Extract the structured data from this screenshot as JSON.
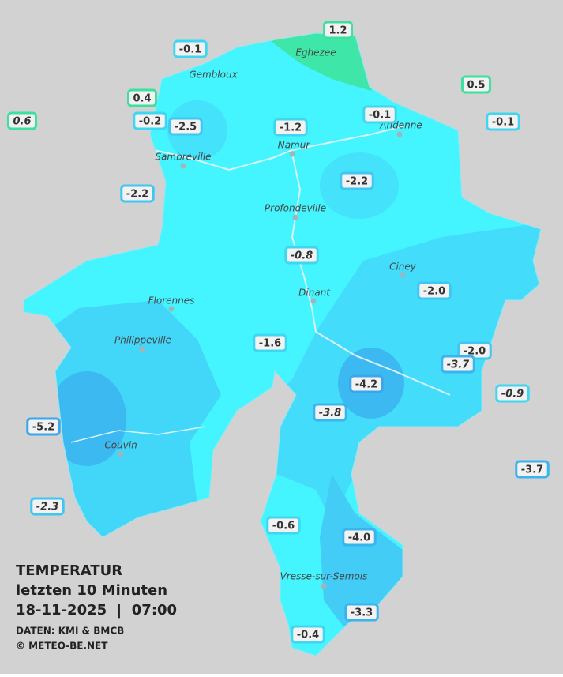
{
  "map": {
    "background": "#d2d2d2",
    "legend": {
      "title": "TEMPERATUR",
      "subtitle": "letzten 10 Minuten",
      "datetime": "18-11-2025  |  07:00",
      "source": "DATEN: KMI & BMCB",
      "copyright": "© METEO-BE.NET"
    },
    "cities": [
      "Eghezee",
      "Gembloux",
      "Andenne",
      "Namur",
      "Sambreville",
      "Profondeville",
      "Ciney",
      "Dinant",
      "Florennes",
      "Philippeville",
      "Couvin",
      "Vresse-sur-Semois"
    ],
    "stations": [
      {
        "value": "-0.1",
        "border": "#3fd6f2"
      },
      {
        "value": "1.2",
        "border": "#3ee0a0"
      },
      {
        "value": "0.5",
        "border": "#3ee0a0"
      },
      {
        "value": "0.4",
        "border": "#3ee0a0"
      },
      {
        "value": "0.6",
        "border": "#3ee0a0",
        "italic": true
      },
      {
        "value": "-0.2",
        "border": "#3fd6f2"
      },
      {
        "value": "-2.5",
        "border": "#3fc6f2"
      },
      {
        "value": "-1.2",
        "border": "#3fd6f2"
      },
      {
        "value": "-0.1",
        "border": "#3fd6f2"
      },
      {
        "value": "-0.1",
        "border": "#3fd6f2"
      },
      {
        "value": "-2.2",
        "border": "#3fc6f2"
      },
      {
        "value": "-2.2",
        "border": "#3fc6f2"
      },
      {
        "value": "-0.8",
        "border": "#3fd6f2",
        "italic": true
      },
      {
        "value": "-2.0",
        "border": "#3fc6f2"
      },
      {
        "value": "-1.6",
        "border": "#3fd6f2"
      },
      {
        "value": "-2.0",
        "border": "#3fc6f2"
      },
      {
        "value": "-3.7",
        "border": "#3ab4ee",
        "italic": true
      },
      {
        "value": "-4.2",
        "border": "#3aa6ec"
      },
      {
        "value": "-0.9",
        "border": "#3fd6f2",
        "italic": true
      },
      {
        "value": "-3.8",
        "border": "#3ab4ee",
        "italic": true
      },
      {
        "value": "-5.2",
        "border": "#3aa6ec"
      },
      {
        "value": "-3.7",
        "border": "#3ab4ee"
      },
      {
        "value": "-2.3",
        "border": "#3fc6f2",
        "italic": true
      },
      {
        "value": "-0.6",
        "border": "#3fd6f2"
      },
      {
        "value": "-4.0",
        "border": "#3ab4ee"
      },
      {
        "value": "-3.3",
        "border": "#3ab4ee"
      },
      {
        "value": "-0.4",
        "border": "#3fd6f2"
      }
    ]
  }
}
